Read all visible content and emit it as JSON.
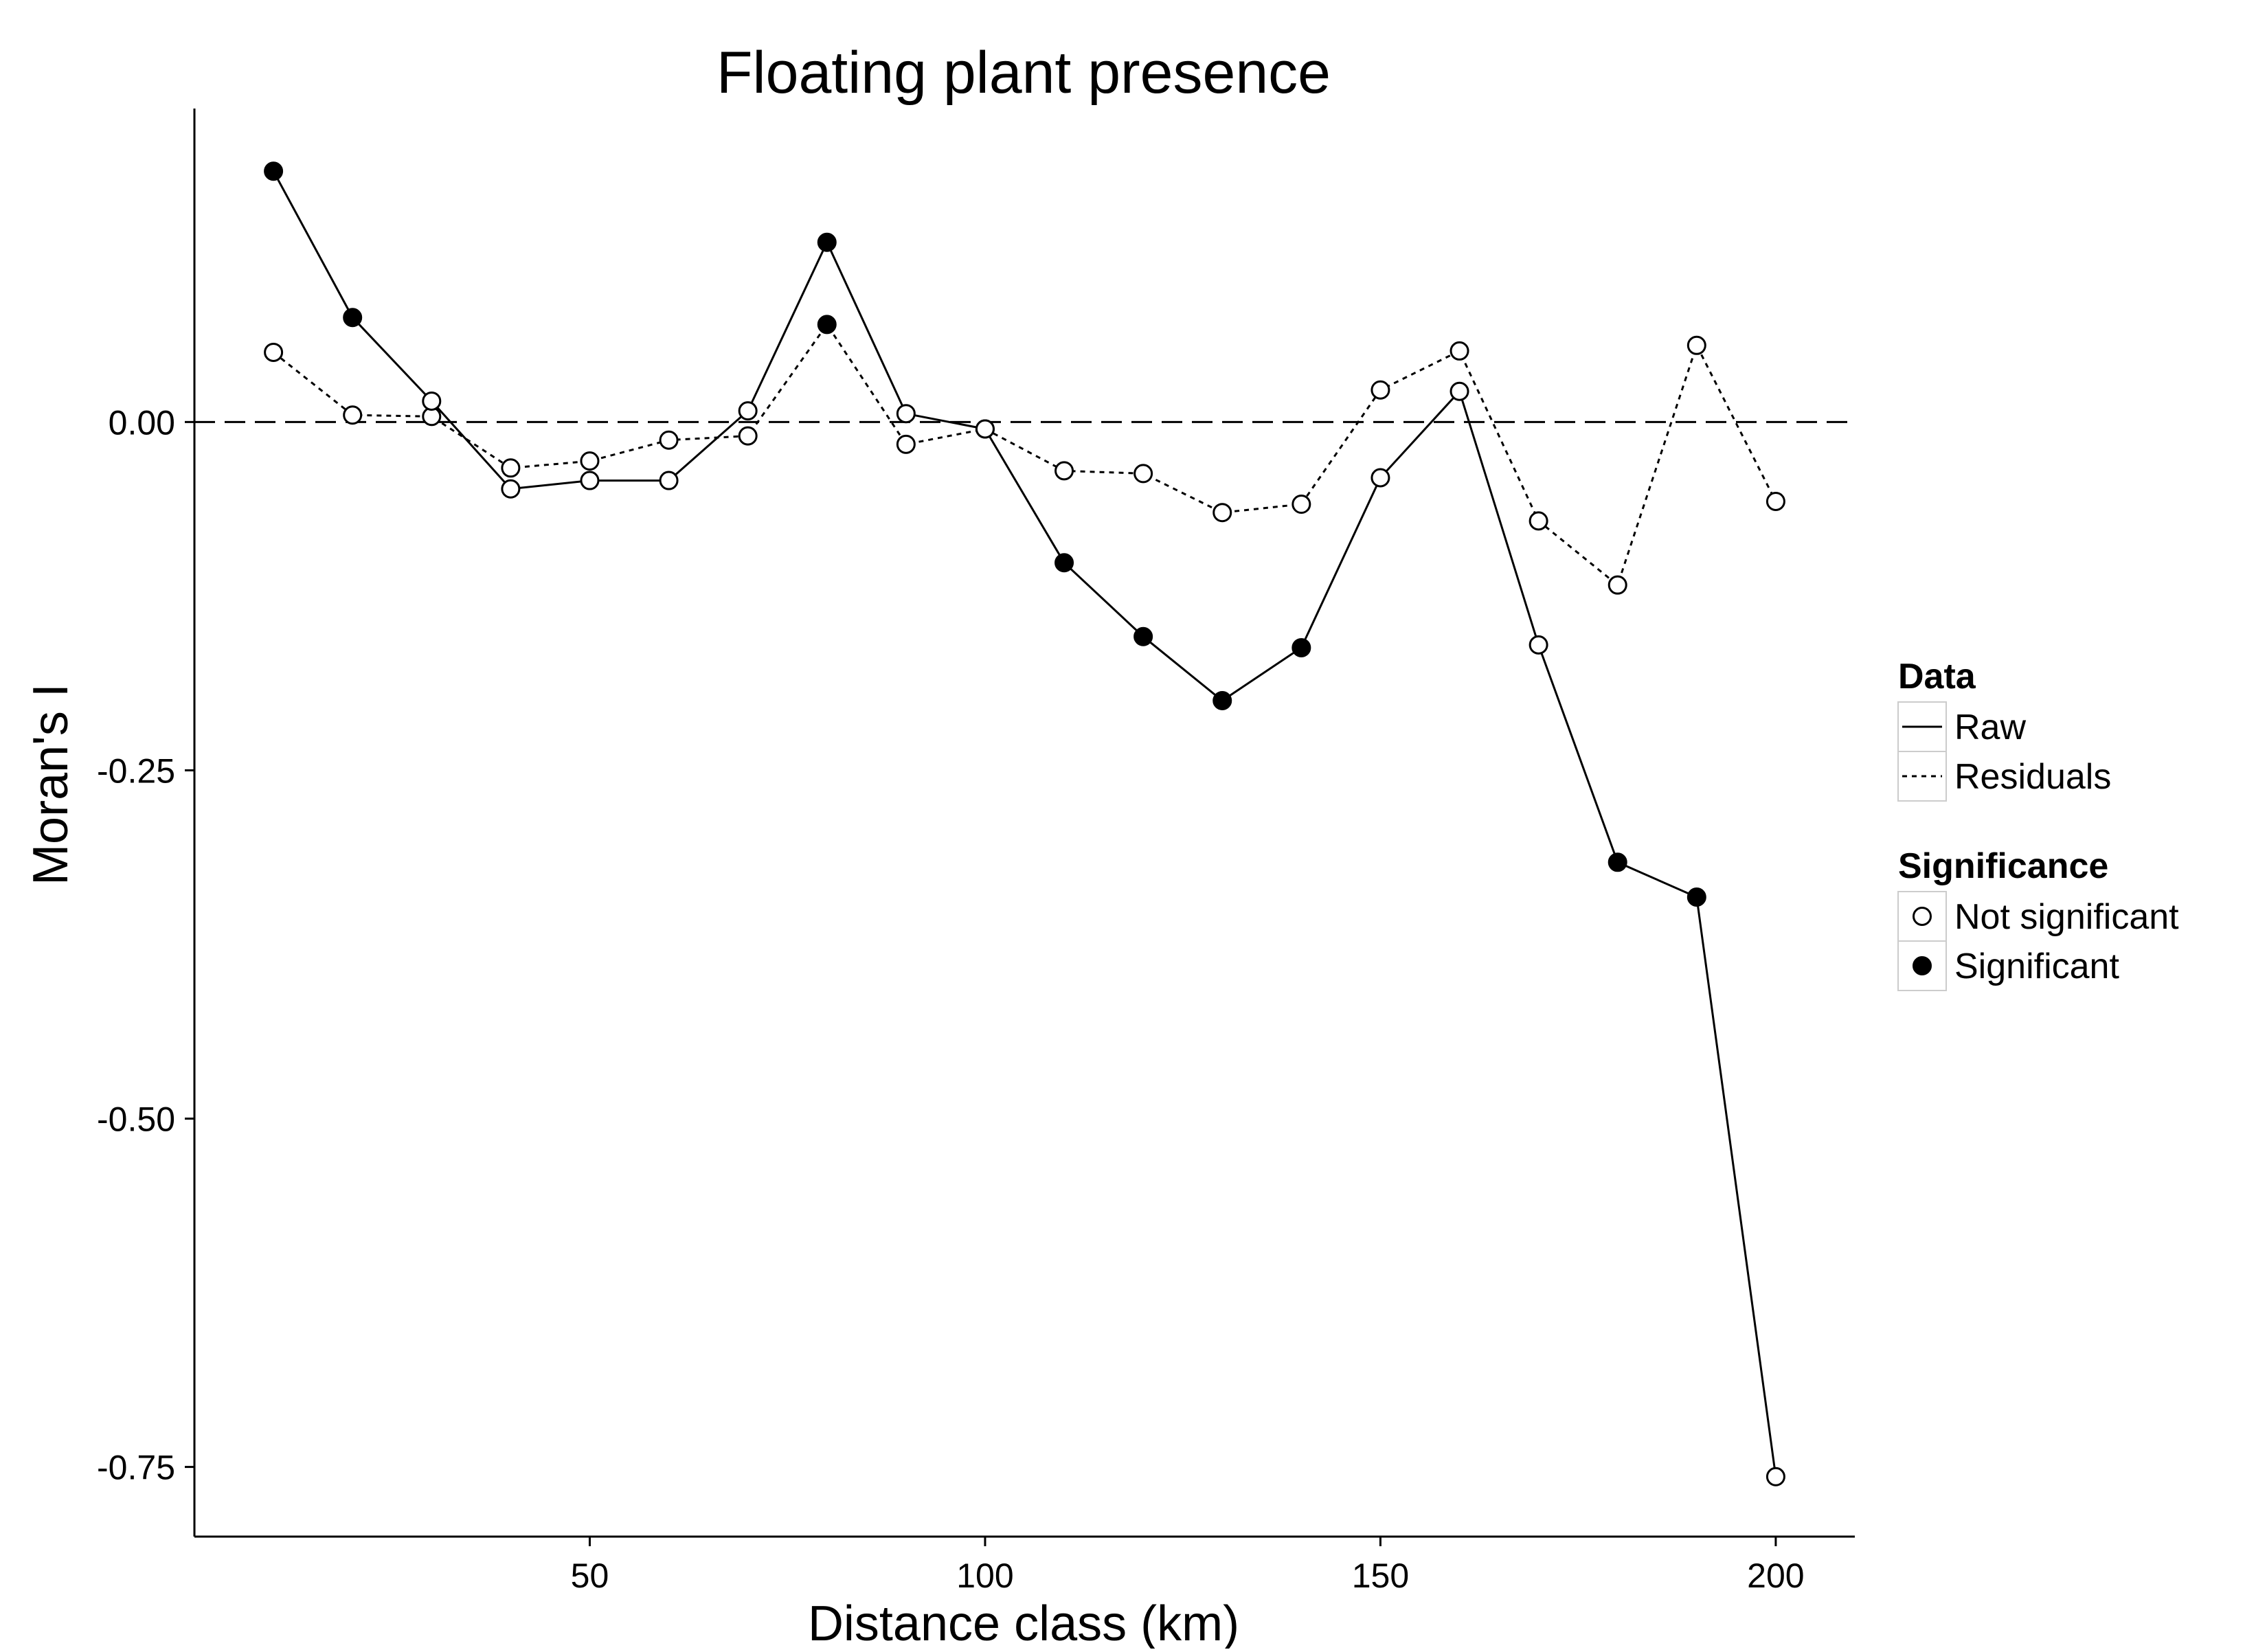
{
  "chart_data": {
    "type": "line",
    "title": "Floating plant presence",
    "xlabel": "Distance class (km)",
    "ylabel": "Moran's I",
    "xlim": [
      0,
      210
    ],
    "ylim": [
      -0.8,
      0.225
    ],
    "x_ticks": [
      50,
      100,
      150,
      200
    ],
    "y_ticks": [
      0.0,
      -0.25,
      -0.5,
      -0.75
    ],
    "x_tick_labels": [
      "50",
      "100",
      "150",
      "200"
    ],
    "y_tick_labels": [
      "0.00",
      "-0.25",
      "-0.50",
      "-0.75"
    ],
    "reference_line": {
      "y": 0.0,
      "style": "dashed"
    },
    "x": [
      10,
      20,
      30,
      40,
      50,
      60,
      70,
      80,
      90,
      100,
      110,
      120,
      130,
      140,
      150,
      160,
      170,
      180,
      190,
      200
    ],
    "series": [
      {
        "name": "Raw",
        "line_style": "solid",
        "values": [
          0.18,
          0.075,
          0.015,
          -0.048,
          -0.042,
          -0.042,
          0.008,
          0.129,
          0.006,
          -0.005,
          -0.101,
          -0.154,
          -0.2,
          -0.162,
          -0.04,
          0.022,
          -0.16,
          -0.316,
          -0.341,
          -0.757
        ],
        "significant": [
          true,
          true,
          false,
          false,
          false,
          false,
          false,
          true,
          false,
          false,
          true,
          true,
          true,
          true,
          false,
          false,
          false,
          true,
          true,
          false
        ]
      },
      {
        "name": "Residuals",
        "line_style": "dotted",
        "values": [
          0.05,
          0.005,
          0.004,
          -0.033,
          -0.028,
          -0.013,
          -0.01,
          0.07,
          -0.016,
          -0.005,
          -0.035,
          -0.037,
          -0.065,
          -0.059,
          0.023,
          0.051,
          -0.071,
          -0.117,
          0.055,
          -0.057
        ],
        "significant": [
          false,
          false,
          false,
          false,
          false,
          false,
          false,
          true,
          false,
          false,
          false,
          false,
          false,
          false,
          false,
          false,
          false,
          false,
          false,
          false
        ]
      }
    ],
    "legend": {
      "placement": "right",
      "groups": [
        {
          "title": "Data",
          "entries": [
            "Raw",
            "Residuals"
          ]
        },
        {
          "title": "Significance",
          "entries": [
            "Not significant",
            "Significant"
          ]
        }
      ]
    },
    "grid": false
  }
}
